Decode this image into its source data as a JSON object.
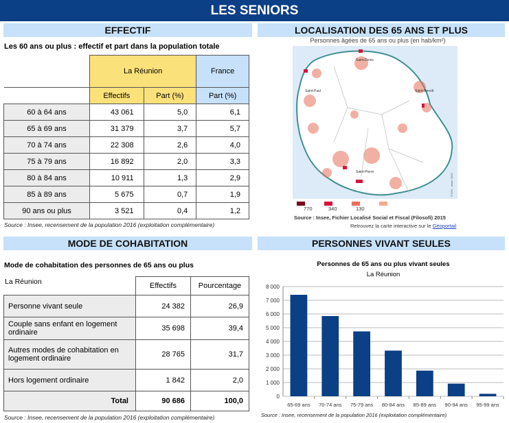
{
  "title": "LES SENIORS",
  "effectif": {
    "header": "EFFECTIF",
    "subtitle": "Les 60 ans ou plus : effectif et part dans la population totale",
    "col_group_reunion": "La Réunion",
    "col_group_france": "France",
    "cols": [
      "Effectifs",
      "Part (%)",
      "Part (%)"
    ],
    "rows": [
      {
        "label": "60 à 64 ans",
        "effectifs": "43 061",
        "part": "5,0",
        "france": "6,1"
      },
      {
        "label": "65 à 69 ans",
        "effectifs": "31 379",
        "part": "3,7",
        "france": "5,7"
      },
      {
        "label": "70 à 74 ans",
        "effectifs": "22 308",
        "part": "2,6",
        "france": "4,0"
      },
      {
        "label": "75 à 79 ans",
        "effectifs": "16 892",
        "part": "2,0",
        "france": "3,3"
      },
      {
        "label": "80 à 84 ans",
        "effectifs": "10 911",
        "part": "1,3",
        "france": "2,9"
      },
      {
        "label": "85 à 89 ans",
        "effectifs": "5 675",
        "part": "0,7",
        "france": "1,9"
      },
      {
        "label": "90 ans ou plus",
        "effectifs": "3 521",
        "part": "0,4",
        "france": "1,2"
      }
    ],
    "source": "Source : Insee, recensement de la population 2016 (exploitation complémentaire)"
  },
  "localisation": {
    "header": "LOCALISATION DES 65 ANS ET PLUS",
    "map_title": "Personnes âgées de 65 ans ou plus (en hab/km²)",
    "cities": [
      "Saint-Denis",
      "Saint-Paul",
      "Saint-Benoît",
      "Saint-Pierre"
    ],
    "copyright": "© IGN - Insee 2020",
    "legend": [
      {
        "label": "770",
        "color": "#7a0a1e"
      },
      {
        "label": "340",
        "color": "#d4163c"
      },
      {
        "label": "130",
        "color": "#e8705a"
      },
      {
        "label": "",
        "color": "#f4a98a"
      }
    ],
    "source": "Source : Insee, Fichier Localisé Social et Fiscal (Filosofi) 2015",
    "link_prefix": "Retrouvez la carte interactive sur le ",
    "link_text": "Géoportail"
  },
  "cohabitation": {
    "header": "MODE DE COHABITATION",
    "subtitle": "Mode de cohabitation des personnes de 65 ans ou plus",
    "corner": "La Réunion",
    "cols": [
      "Effectifs",
      "Pourcentage"
    ],
    "rows": [
      {
        "label": "Personne vivant seule",
        "effectifs": "24 382",
        "pct": "26,9"
      },
      {
        "label": "Couple sans enfant en logement ordinaire",
        "effectifs": "35 698",
        "pct": "39,4"
      },
      {
        "label": "Autres modes de cohabitation en logement ordinaire",
        "effectifs": "28 765",
        "pct": "31,7"
      },
      {
        "label": "Hors logement ordinaire",
        "effectifs": "1 842",
        "pct": "2,0"
      }
    ],
    "total": {
      "label": "Total",
      "effectifs": "90 686",
      "pct": "100,0"
    },
    "source": "Source : Insee, recensement de la population 2016 (exploitation complémentaire)"
  },
  "seules": {
    "header": "PERSONNES VIVANT SEULES",
    "source": "Source : Insee, recensement de la population 2016 (exploitation complémentaire)"
  },
  "chart_data": {
    "type": "bar",
    "title": "Personnes de 65 ans ou plus vivant seules",
    "subtitle": "La Réunion",
    "categories": [
      "65-69 ans",
      "70-74 ans",
      "75-79 ans",
      "80-84 ans",
      "85-89 ans",
      "90-94 ans",
      "95-99 ans"
    ],
    "values": [
      7400,
      5850,
      4730,
      3330,
      1870,
      920,
      180
    ],
    "ylim": [
      0,
      8000
    ],
    "yticks": [
      "0",
      "1 000",
      "2 000",
      "3 000",
      "4 000",
      "5 000",
      "6 000",
      "7 000",
      "8 000"
    ],
    "grid": true,
    "color": "#0b3f86"
  }
}
